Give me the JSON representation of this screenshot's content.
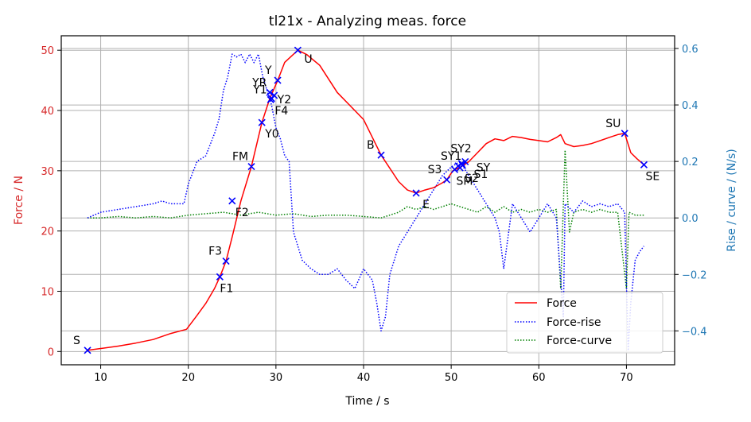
{
  "chart_data": {
    "type": "line",
    "title": "tl21x - Analyzing meas. force",
    "xlabel": "Time / s",
    "ylabel_left": "Force / N",
    "ylabel_right": "Rise / curve /  (N/s)",
    "xlim": [
      5.5,
      75.5
    ],
    "ylim_left": [
      -2.2,
      52.4
    ],
    "ylim_right": [
      -0.52,
      0.645
    ],
    "x_ticks": [
      10,
      20,
      30,
      40,
      50,
      60,
      70
    ],
    "y_left_ticks": [
      0,
      10,
      20,
      30,
      40,
      50
    ],
    "y_right_ticks": [
      -0.4,
      -0.2,
      0.0,
      0.2,
      0.4,
      0.6
    ],
    "y_right_tick_labels": [
      "−0.4",
      "−0.2",
      "0.0",
      "0.2",
      "0.4",
      "0.6"
    ],
    "grid": true,
    "legend_position": "lower-right",
    "colors": {
      "force": "#ff0000",
      "rise": "#0000ff",
      "curve": "#008000",
      "right_axis": "#1f77b4",
      "left_axis": "#d62728"
    },
    "legend": [
      "Force",
      "Force-rise",
      "Force-curve"
    ],
    "series": [
      {
        "name": "Force",
        "axis": "left",
        "style": "solid",
        "x": [
          8.5,
          10,
          12,
          14,
          16,
          18,
          19.8,
          21,
          22,
          23,
          23.6,
          24.3,
          25,
          26,
          27.2,
          28.4,
          29.3,
          30.2,
          31,
          32.5,
          33.5,
          35,
          37,
          40,
          42,
          44,
          45,
          46,
          47,
          48,
          49,
          49.5,
          50.2,
          50.9,
          51.5,
          52,
          53,
          54,
          55,
          56,
          57,
          58,
          59,
          60,
          61,
          62,
          62.5,
          63,
          64,
          65,
          66,
          67,
          68,
          69,
          69.8,
          70.5,
          71.2,
          72
        ],
        "y": [
          0.2,
          0.5,
          0.9,
          1.4,
          2.0,
          3.0,
          3.7,
          6.0,
          8.0,
          10.5,
          12.4,
          15.0,
          19.0,
          25.0,
          30.7,
          38.0,
          42.0,
          45.0,
          48.0,
          50.0,
          49.3,
          47.5,
          43.0,
          38.5,
          32.6,
          28.2,
          26.8,
          26.3,
          26.8,
          27.2,
          28.0,
          28.5,
          30.0,
          30.5,
          31.0,
          31.5,
          33.0,
          34.5,
          35.3,
          35.0,
          35.7,
          35.5,
          35.2,
          35.0,
          34.8,
          35.5,
          36.0,
          34.5,
          34.0,
          34.2,
          34.5,
          35.0,
          35.5,
          36.0,
          36.2,
          33.0,
          32.0,
          31.0
        ]
      },
      {
        "name": "Force-rise",
        "axis": "right",
        "style": "dotted",
        "x": [
          8.5,
          10,
          12,
          14,
          16,
          17,
          18,
          19.5,
          20,
          21,
          22,
          23,
          23.5,
          24,
          24.5,
          25,
          25.5,
          26,
          26.5,
          27,
          27.5,
          28,
          28.5,
          29,
          29.5,
          30,
          30.5,
          31,
          31.5,
          32,
          33,
          34,
          35,
          36,
          37,
          38,
          39,
          40,
          41,
          41.5,
          42,
          42.5,
          43,
          44,
          45,
          46,
          47,
          48,
          49,
          50,
          51,
          52,
          53,
          54,
          55,
          55.5,
          56,
          57,
          58,
          59,
          60,
          61,
          62,
          62.8,
          63,
          64,
          65,
          66,
          67,
          68,
          69,
          69.8,
          70.2,
          70.5,
          71,
          71.5,
          72
        ],
        "y": [
          0.0,
          0.02,
          0.03,
          0.04,
          0.05,
          0.06,
          0.05,
          0.05,
          0.12,
          0.2,
          0.22,
          0.3,
          0.35,
          0.45,
          0.5,
          0.58,
          0.57,
          0.58,
          0.55,
          0.58,
          0.55,
          0.58,
          0.5,
          0.45,
          0.4,
          0.32,
          0.28,
          0.22,
          0.2,
          -0.05,
          -0.15,
          -0.18,
          -0.2,
          -0.2,
          -0.18,
          -0.22,
          -0.25,
          -0.18,
          -0.22,
          -0.3,
          -0.4,
          -0.35,
          -0.2,
          -0.1,
          -0.05,
          0.0,
          0.05,
          0.1,
          0.15,
          0.18,
          0.2,
          0.15,
          0.1,
          0.05,
          0.0,
          -0.05,
          -0.18,
          0.05,
          0.0,
          -0.05,
          0.0,
          0.05,
          0.0,
          -0.35,
          0.05,
          0.02,
          0.06,
          0.04,
          0.05,
          0.04,
          0.05,
          0.02,
          -0.47,
          -0.3,
          -0.15,
          -0.12,
          -0.1
        ]
      },
      {
        "name": "Force-curve",
        "axis": "right",
        "style": "dotted",
        "x": [
          8.5,
          10,
          12,
          14,
          16,
          18,
          20,
          22,
          24,
          26,
          28,
          30,
          32,
          34,
          36,
          38,
          40,
          42,
          44,
          45,
          46,
          47,
          48,
          49,
          50,
          51,
          52,
          53,
          54,
          55,
          56,
          57,
          58,
          59,
          60,
          61,
          62,
          62.5,
          63,
          63.5,
          64,
          65,
          66,
          67,
          68,
          69,
          70,
          70.3,
          71,
          72
        ],
        "y": [
          0.0,
          0.0,
          0.005,
          0.0,
          0.005,
          0.0,
          0.01,
          0.015,
          0.02,
          0.01,
          0.02,
          0.01,
          0.015,
          0.005,
          0.01,
          0.01,
          0.005,
          0.0,
          0.02,
          0.04,
          0.03,
          0.04,
          0.03,
          0.04,
          0.05,
          0.04,
          0.03,
          0.02,
          0.04,
          0.02,
          0.04,
          0.02,
          0.03,
          0.02,
          0.03,
          0.02,
          0.03,
          -0.25,
          0.24,
          -0.05,
          0.02,
          0.03,
          0.02,
          0.03,
          0.02,
          0.02,
          -0.25,
          0.02,
          0.01,
          0.01
        ]
      }
    ],
    "markers": [
      {
        "label": "S",
        "x": 8.5,
        "y": 0.2,
        "dx": -18,
        "dy": -8
      },
      {
        "label": "F1",
        "x": 23.6,
        "y": 12.4,
        "dx": 0,
        "dy": 19
      },
      {
        "label": "F3",
        "x": 24.3,
        "y": 15.0,
        "dx": -22,
        "dy": -8
      },
      {
        "label": "F2",
        "x": 25.0,
        "y": 25.0,
        "dx": 4,
        "dy": 19
      },
      {
        "label": "FM",
        "x": 27.2,
        "y": 30.7,
        "dx": -24,
        "dy": -8
      },
      {
        "label": "Y0",
        "x": 28.4,
        "y": 38.0,
        "dx": 4,
        "dy": 19
      },
      {
        "label": "Y1",
        "x": 29.4,
        "y": 41.8,
        "dx": -22,
        "dy": -8
      },
      {
        "label": "YR",
        "x": 29.3,
        "y": 43.0,
        "dx": -22,
        "dy": -8
      },
      {
        "label": "Y2",
        "x": 29.8,
        "y": 42.5,
        "dx": 4,
        "dy": 10
      },
      {
        "label": "F4",
        "x": 29.5,
        "y": 42.0,
        "dx": 4,
        "dy": 20
      },
      {
        "label": "Y",
        "x": 30.2,
        "y": 45.0,
        "dx": -16,
        "dy": -8
      },
      {
        "label": "U",
        "x": 32.5,
        "y": 50.0,
        "dx": 8,
        "dy": 16
      },
      {
        "label": "B",
        "x": 42.0,
        "y": 32.6,
        "dx": -18,
        "dy": -8
      },
      {
        "label": "E",
        "x": 46.0,
        "y": 26.3,
        "dx": 8,
        "dy": 19
      },
      {
        "label": "S3",
        "x": 49.5,
        "y": 28.5,
        "dx": -24,
        "dy": -8
      },
      {
        "label": "SM",
        "x": 50.4,
        "y": 30.2,
        "dx": 2,
        "dy": 19
      },
      {
        "label": "SY1",
        "x": 50.8,
        "y": 30.8,
        "dx": -22,
        "dy": -8
      },
      {
        "label": "SY2",
        "x": 51.2,
        "y": 31.2,
        "dx": -14,
        "dy": -14
      },
      {
        "label": "SY",
        "x": 51.6,
        "y": 31.5,
        "dx": 14,
        "dy": 12
      },
      {
        "label": "S2",
        "x": 51.0,
        "y": 30.5,
        "dx": 6,
        "dy": 18
      },
      {
        "label": "S1",
        "x": 51.3,
        "y": 30.9,
        "dx": 14,
        "dy": 16
      },
      {
        "label": "SU",
        "x": 69.8,
        "y": 36.2,
        "dx": -24,
        "dy": -8
      },
      {
        "label": "SE",
        "x": 72.0,
        "y": 31.0,
        "dx": 2,
        "dy": 19
      }
    ]
  }
}
